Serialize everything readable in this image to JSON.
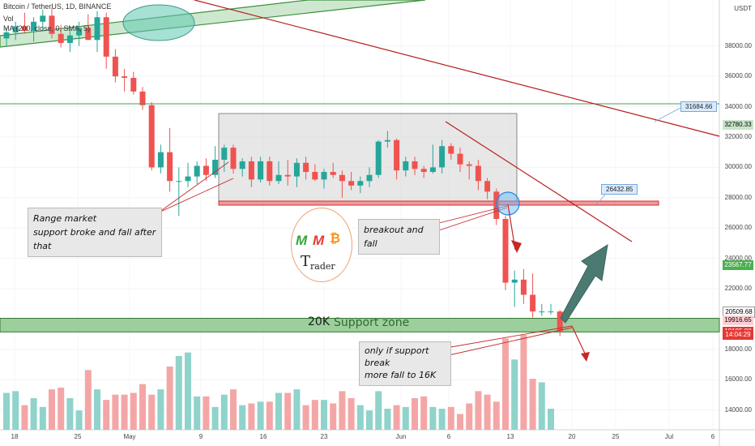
{
  "header": {
    "title": "Bitcoin / TetherUS, 1D, BINANCE",
    "vol_label": "Vol",
    "ma_label": "MA (200, close, 0, SMA, 5)"
  },
  "axis": {
    "currency": "USDT"
  },
  "annotations": {
    "range_line1": "Range market",
    "range_line2": "support broke and fall after that",
    "breakout": "breakout and fall",
    "support_zone_value": "20K",
    "support_zone_label": "Support zone",
    "fall_line1": "only if support break",
    "fall_line2": "more fall to 16K"
  },
  "logo": {
    "letters": [
      "M",
      "M",
      "₿"
    ],
    "text_big": "T",
    "text_small": "rader"
  },
  "callouts": {
    "upper": "31684.66",
    "lower": "26432.85"
  },
  "price_tags": [
    {
      "value": "32780.33",
      "color": "#c8e6c9",
      "price": 32780
    },
    {
      "value": "23567.77",
      "color": "#4caf50",
      "price": 23568
    },
    {
      "value": "20509.68",
      "color": "#ffffff",
      "price": 20510
    },
    {
      "value": "19916.65",
      "color": "#ffcdd2",
      "price": 19917
    },
    {
      "value": "19185.80",
      "color": "#e53935",
      "price": 19186
    },
    {
      "value": "14:04:29",
      "color": "#e53935",
      "price": 18950
    }
  ],
  "colors": {
    "up": "#26a69a",
    "down": "#ef5350",
    "vol_up": "#8fd3cb",
    "vol_down": "#f4a6a6"
  },
  "chart_data": {
    "type": "candlestick",
    "title": "Bitcoin / TetherUS, 1D, BINANCE",
    "ylim": [
      12700,
      40500
    ],
    "y_ticks": [
      "38000.00",
      "36000.00",
      "34000.00",
      "32000.00",
      "30000.00",
      "28000.00",
      "26000.00",
      "24000.00",
      "22000.00",
      "20000.00",
      "18000.00",
      "16000.00",
      "14000.00"
    ],
    "x_ticks": [
      "18",
      "25",
      "May",
      "9",
      "16",
      "23",
      "Jun",
      "6",
      "13",
      "20",
      "25",
      "Jul",
      "6"
    ],
    "candles": [
      {
        "o": 38500,
        "h": 39200,
        "l": 38000,
        "c": 38900
      },
      {
        "o": 38900,
        "h": 39600,
        "l": 38400,
        "c": 39300
      },
      {
        "o": 39300,
        "h": 40200,
        "l": 38800,
        "c": 39000
      },
      {
        "o": 39000,
        "h": 39900,
        "l": 38300,
        "c": 39600
      },
      {
        "o": 39600,
        "h": 40400,
        "l": 39000,
        "c": 40000
      },
      {
        "o": 40000,
        "h": 40500,
        "l": 38500,
        "c": 38800
      },
      {
        "o": 38800,
        "h": 39400,
        "l": 37900,
        "c": 38200
      },
      {
        "o": 38200,
        "h": 39100,
        "l": 37600,
        "c": 38700
      },
      {
        "o": 38700,
        "h": 39600,
        "l": 38000,
        "c": 39200
      },
      {
        "o": 39200,
        "h": 40100,
        "l": 38500,
        "c": 38400
      },
      {
        "o": 38400,
        "h": 40300,
        "l": 37600,
        "c": 39900
      },
      {
        "o": 39900,
        "h": 40200,
        "l": 36500,
        "c": 37300
      },
      {
        "o": 37300,
        "h": 37800,
        "l": 35600,
        "c": 36000
      },
      {
        "o": 36000,
        "h": 36500,
        "l": 35000,
        "c": 35900
      },
      {
        "o": 35900,
        "h": 36300,
        "l": 34800,
        "c": 35000
      },
      {
        "o": 35000,
        "h": 35300,
        "l": 33800,
        "c": 34100
      },
      {
        "o": 34100,
        "h": 34300,
        "l": 29800,
        "c": 30000
      },
      {
        "o": 30000,
        "h": 31500,
        "l": 29600,
        "c": 31000
      },
      {
        "o": 31000,
        "h": 32600,
        "l": 28400,
        "c": 29100
      },
      {
        "o": 29100,
        "h": 30000,
        "l": 26800,
        "c": 29100
      },
      {
        "o": 29100,
        "h": 30300,
        "l": 28700,
        "c": 29400
      },
      {
        "o": 29400,
        "h": 30400,
        "l": 28900,
        "c": 30100
      },
      {
        "o": 30100,
        "h": 30600,
        "l": 29100,
        "c": 29500
      },
      {
        "o": 29500,
        "h": 31400,
        "l": 29300,
        "c": 30500
      },
      {
        "o": 30500,
        "h": 31500,
        "l": 29700,
        "c": 31300
      },
      {
        "o": 31300,
        "h": 31500,
        "l": 29600,
        "c": 29900
      },
      {
        "o": 29900,
        "h": 30600,
        "l": 29400,
        "c": 30400
      },
      {
        "o": 30400,
        "h": 30700,
        "l": 28700,
        "c": 29200
      },
      {
        "o": 29200,
        "h": 30700,
        "l": 29000,
        "c": 30400
      },
      {
        "o": 30400,
        "h": 30700,
        "l": 28800,
        "c": 29100
      },
      {
        "o": 29100,
        "h": 30400,
        "l": 28900,
        "c": 29500
      },
      {
        "o": 29500,
        "h": 30500,
        "l": 28800,
        "c": 29400
      },
      {
        "o": 29400,
        "h": 30600,
        "l": 28700,
        "c": 30300
      },
      {
        "o": 30300,
        "h": 30700,
        "l": 29200,
        "c": 29700
      },
      {
        "o": 29700,
        "h": 30200,
        "l": 29100,
        "c": 29200
      },
      {
        "o": 29200,
        "h": 29900,
        "l": 28600,
        "c": 29700
      },
      {
        "o": 29700,
        "h": 30300,
        "l": 29300,
        "c": 29500
      },
      {
        "o": 29500,
        "h": 29800,
        "l": 28000,
        "c": 29100
      },
      {
        "o": 29100,
        "h": 29700,
        "l": 28500,
        "c": 28800
      },
      {
        "o": 28800,
        "h": 29400,
        "l": 28300,
        "c": 29100
      },
      {
        "o": 29100,
        "h": 30000,
        "l": 28700,
        "c": 29500
      },
      {
        "o": 29500,
        "h": 31800,
        "l": 29300,
        "c": 31700
      },
      {
        "o": 31700,
        "h": 32400,
        "l": 31300,
        "c": 31800
      },
      {
        "o": 31800,
        "h": 31900,
        "l": 29200,
        "c": 29800
      },
      {
        "o": 29800,
        "h": 30700,
        "l": 29400,
        "c": 30400
      },
      {
        "o": 30400,
        "h": 30700,
        "l": 29500,
        "c": 29900
      },
      {
        "o": 29900,
        "h": 30100,
        "l": 29300,
        "c": 29700
      },
      {
        "o": 29700,
        "h": 31500,
        "l": 29600,
        "c": 30000
      },
      {
        "o": 30000,
        "h": 31800,
        "l": 29600,
        "c": 31400
      },
      {
        "o": 31400,
        "h": 31600,
        "l": 30500,
        "c": 30900
      },
      {
        "o": 30900,
        "h": 31300,
        "l": 29700,
        "c": 30200
      },
      {
        "o": 30200,
        "h": 30400,
        "l": 29200,
        "c": 30100
      },
      {
        "o": 30100,
        "h": 30500,
        "l": 28500,
        "c": 29100
      },
      {
        "o": 29100,
        "h": 29300,
        "l": 27900,
        "c": 28400
      },
      {
        "o": 28400,
        "h": 28600,
        "l": 26200,
        "c": 26600
      },
      {
        "o": 26600,
        "h": 26800,
        "l": 21900,
        "c": 22400
      },
      {
        "o": 22400,
        "h": 23200,
        "l": 20800,
        "c": 22600
      },
      {
        "o": 22600,
        "h": 23300,
        "l": 21000,
        "c": 21600
      },
      {
        "o": 21600,
        "h": 23000,
        "l": 20100,
        "c": 20500
      },
      {
        "o": 20500,
        "h": 21000,
        "l": 20200,
        "c": 20500
      },
      {
        "o": 20500,
        "h": 21000,
        "l": 20300,
        "c": 20500
      },
      {
        "o": 20500,
        "h": 20600,
        "l": 18900,
        "c": 19200
      }
    ],
    "volume": [
      1050,
      1100,
      700,
      900,
      650,
      1150,
      1200,
      900,
      550,
      1700,
      1150,
      850,
      1000,
      1000,
      1050,
      1300,
      1000,
      1150,
      1800,
      2100,
      2200,
      950,
      950,
      650,
      1000,
      1150,
      700,
      750,
      800,
      800,
      1050,
      1050,
      1150,
      700,
      850,
      850,
      750,
      1100,
      900,
      700,
      550,
      1100,
      600,
      700,
      650,
      900,
      950,
      650,
      600,
      650,
      450,
      750,
      1100,
      1000,
      800,
      2600,
      2000,
      2700,
      1450,
      1350,
      600,
      0
    ],
    "volume_ylim": [
      0,
      3000
    ],
    "support_zone": [
      19150,
      20050
    ]
  }
}
